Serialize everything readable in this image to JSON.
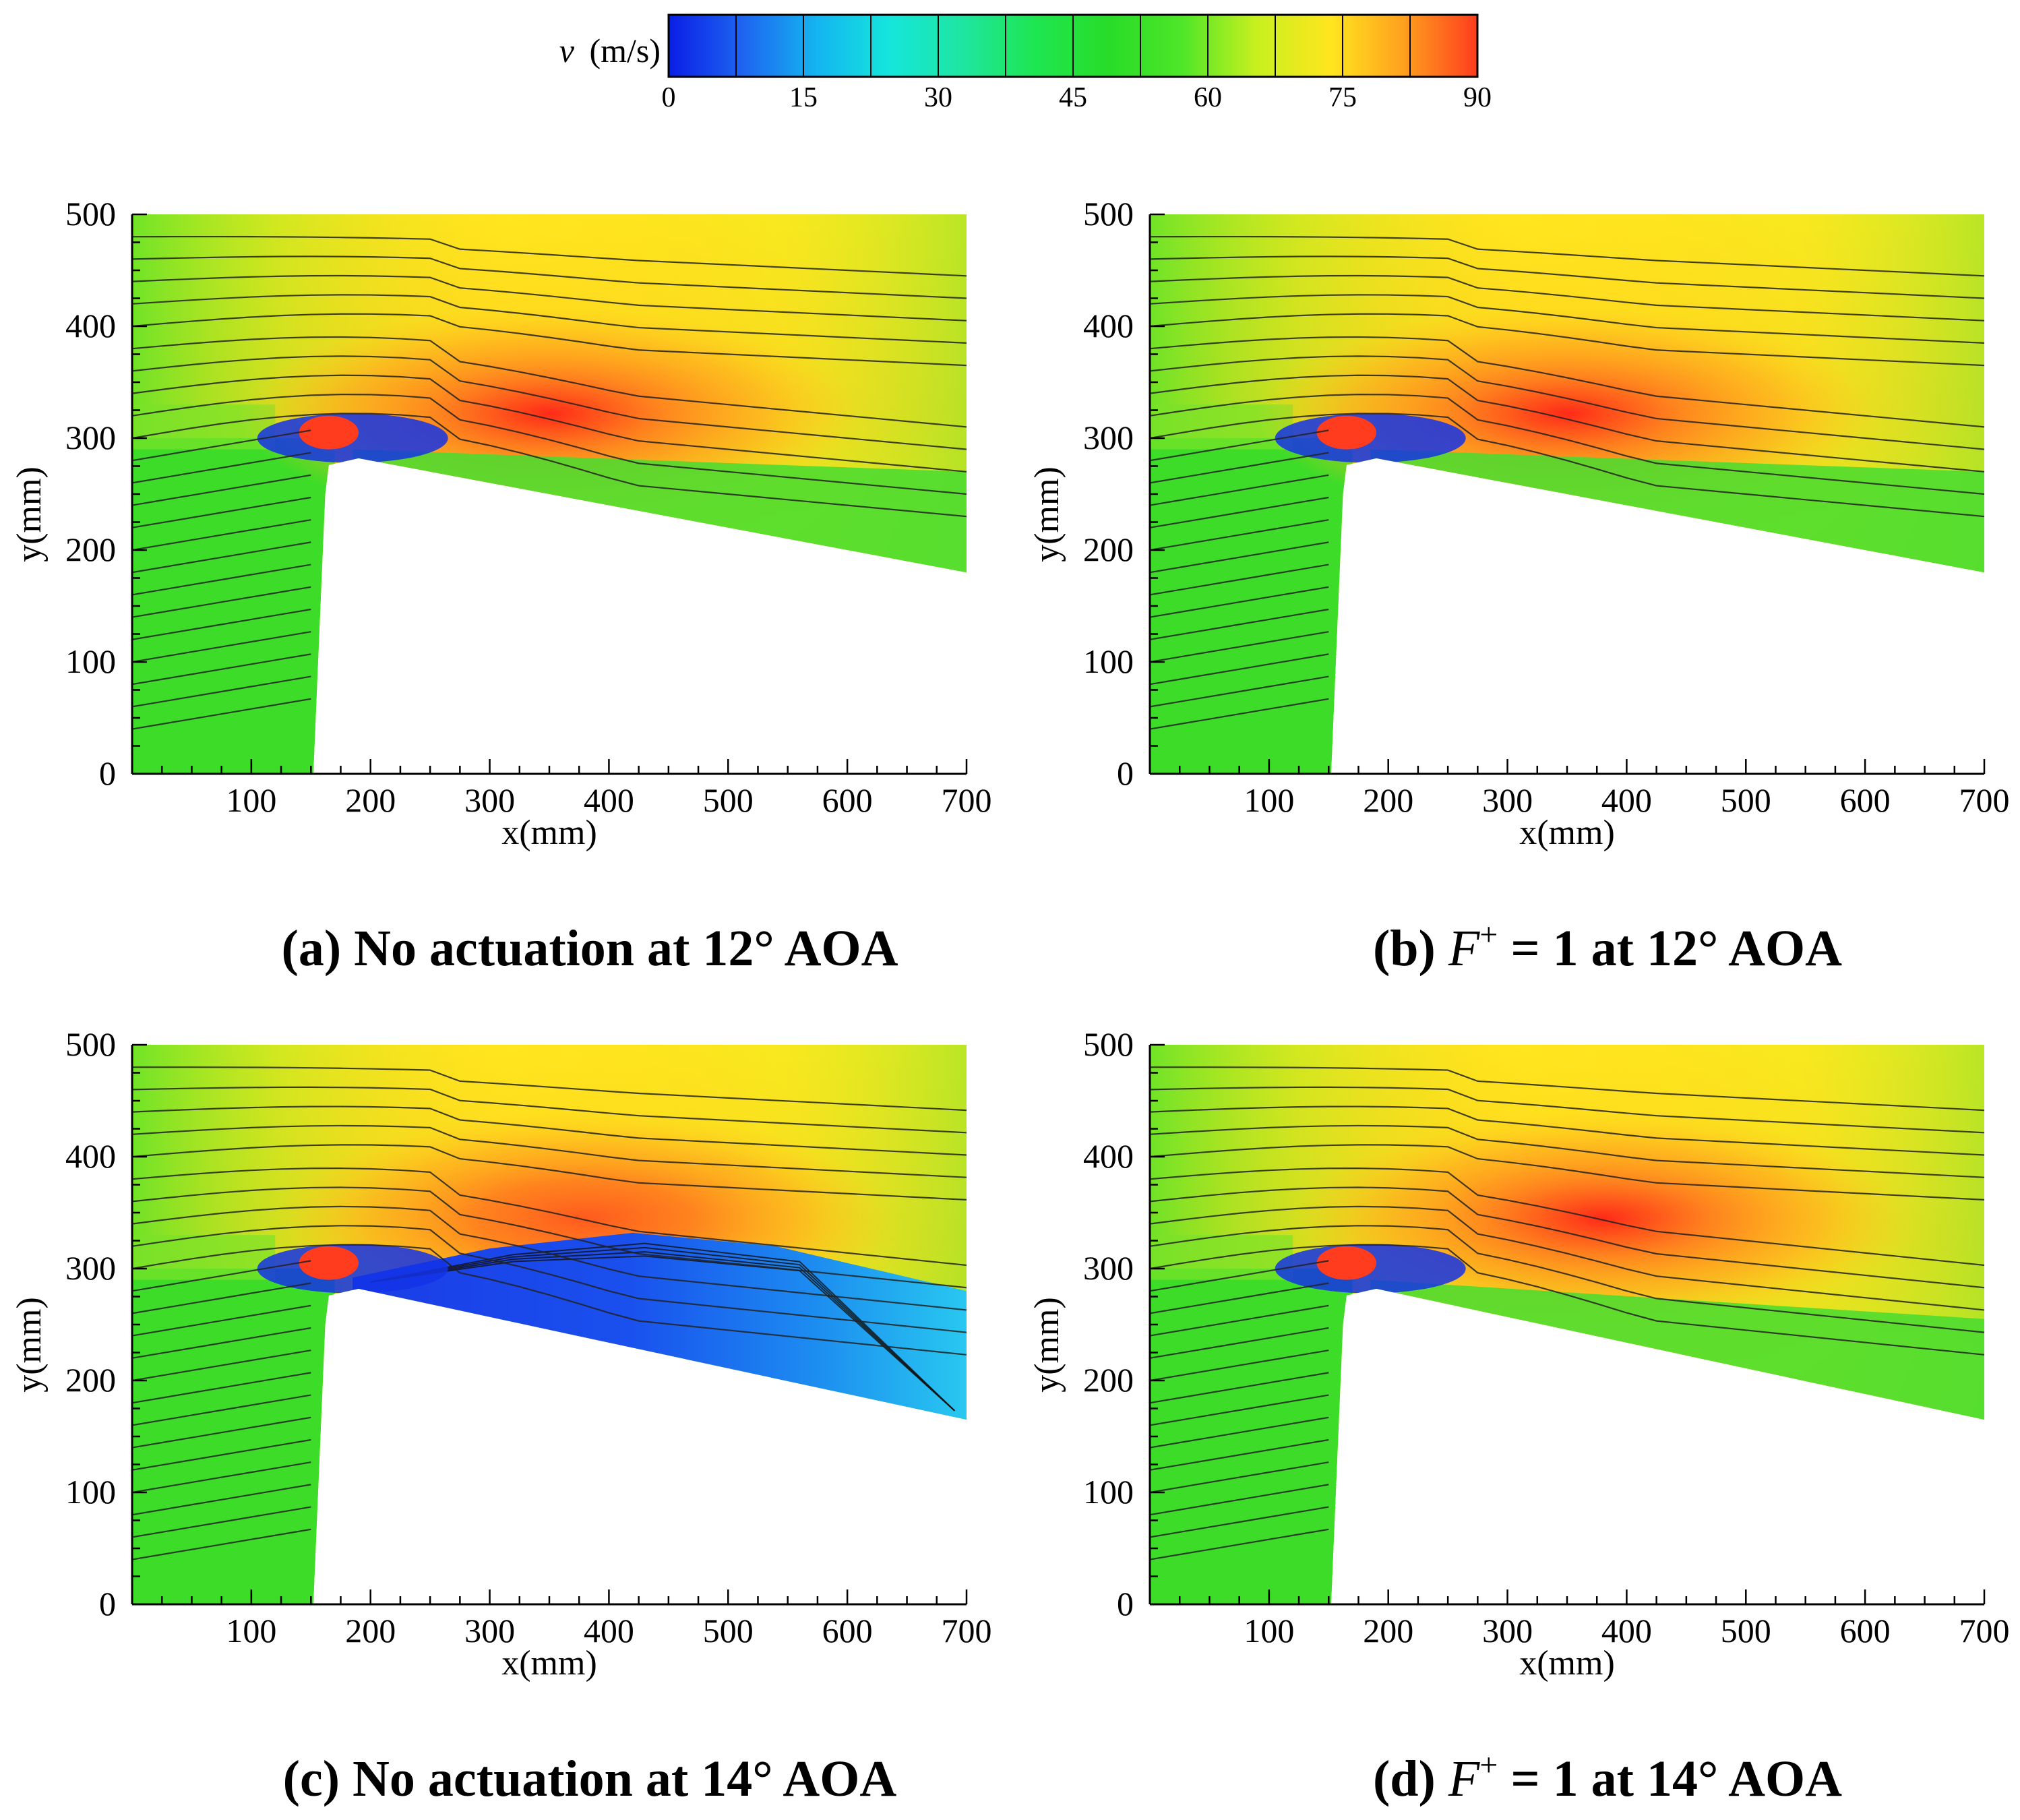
{
  "colorbar": {
    "label_var": "v",
    "label_unit": "(m/s)",
    "ticks": [
      "0",
      "15",
      "30",
      "45",
      "60",
      "75",
      "90"
    ],
    "tick_values": [
      0,
      15,
      30,
      45,
      60,
      75,
      90
    ],
    "range": [
      0,
      90
    ],
    "levels": 12,
    "colors": [
      "#0a1ee6",
      "#1e64f0",
      "#14b4f0",
      "#14e6dc",
      "#1ee6a0",
      "#1ee650",
      "#28dc28",
      "#50e628",
      "#c8f01e",
      "#ffe61e",
      "#ffa01e",
      "#ff3c1e"
    ]
  },
  "common": {
    "xlabel": "x(mm)",
    "ylabel": "y(mm)",
    "xticks": [
      "100",
      "200",
      "300",
      "400",
      "500",
      "600",
      "700"
    ],
    "yticks": [
      "0",
      "100",
      "200",
      "300",
      "400",
      "500"
    ],
    "xlim": [
      0,
      700
    ],
    "ylim": [
      0,
      500
    ]
  },
  "panels": [
    {
      "id": "a",
      "caption": "(a) No actuation at 12° AOA",
      "caption_parts": {
        "prefix": "(a) ",
        "symbol": "",
        "rest": "No actuation at 12° AOA"
      },
      "aoa_deg": 12,
      "actuation": "none",
      "separated": false,
      "core_velocity": 85
    },
    {
      "id": "b",
      "caption": "(b) F+ = 1 at 12° AOA",
      "caption_parts": {
        "prefix": "(b) ",
        "symbol": "F",
        "sup": "+",
        "rest": " = 1 at 12° AOA"
      },
      "aoa_deg": 12,
      "actuation": "F+ = 1",
      "separated": false,
      "core_velocity": 85
    },
    {
      "id": "c",
      "caption": "(c) No actuation at 14° AOA",
      "caption_parts": {
        "prefix": "(c) ",
        "symbol": "",
        "rest": "No actuation at 14° AOA"
      },
      "aoa_deg": 14,
      "actuation": "none",
      "separated": true,
      "core_velocity": 80
    },
    {
      "id": "d",
      "caption": "(d) F+ = 1 at 14° AOA",
      "caption_parts": {
        "prefix": "(d) ",
        "symbol": "F",
        "sup": "+",
        "rest": " = 1 at 14° AOA"
      },
      "aoa_deg": 14,
      "actuation": "F+ = 1",
      "separated": false,
      "core_velocity": 88
    }
  ],
  "chart_data": {
    "type": "heatmap",
    "title": "",
    "colorbar_label": "v (m/s)",
    "xlabel": "x(mm)",
    "ylabel": "y(mm)",
    "xlim": [
      0,
      700
    ],
    "ylim": [
      0,
      500
    ],
    "zlim": [
      0,
      90
    ],
    "series": [
      {
        "name": "(a) No actuation at 12° AOA",
        "velocity_range": [
          0,
          90
        ]
      },
      {
        "name": "(b) F+ = 1 at 12° AOA",
        "velocity_range": [
          0,
          90
        ]
      },
      {
        "name": "(c) No actuation at 14° AOA",
        "velocity_range": [
          0,
          90
        ]
      },
      {
        "name": "(d) F+ = 1 at 14° AOA",
        "velocity_range": [
          0,
          90
        ]
      }
    ]
  }
}
